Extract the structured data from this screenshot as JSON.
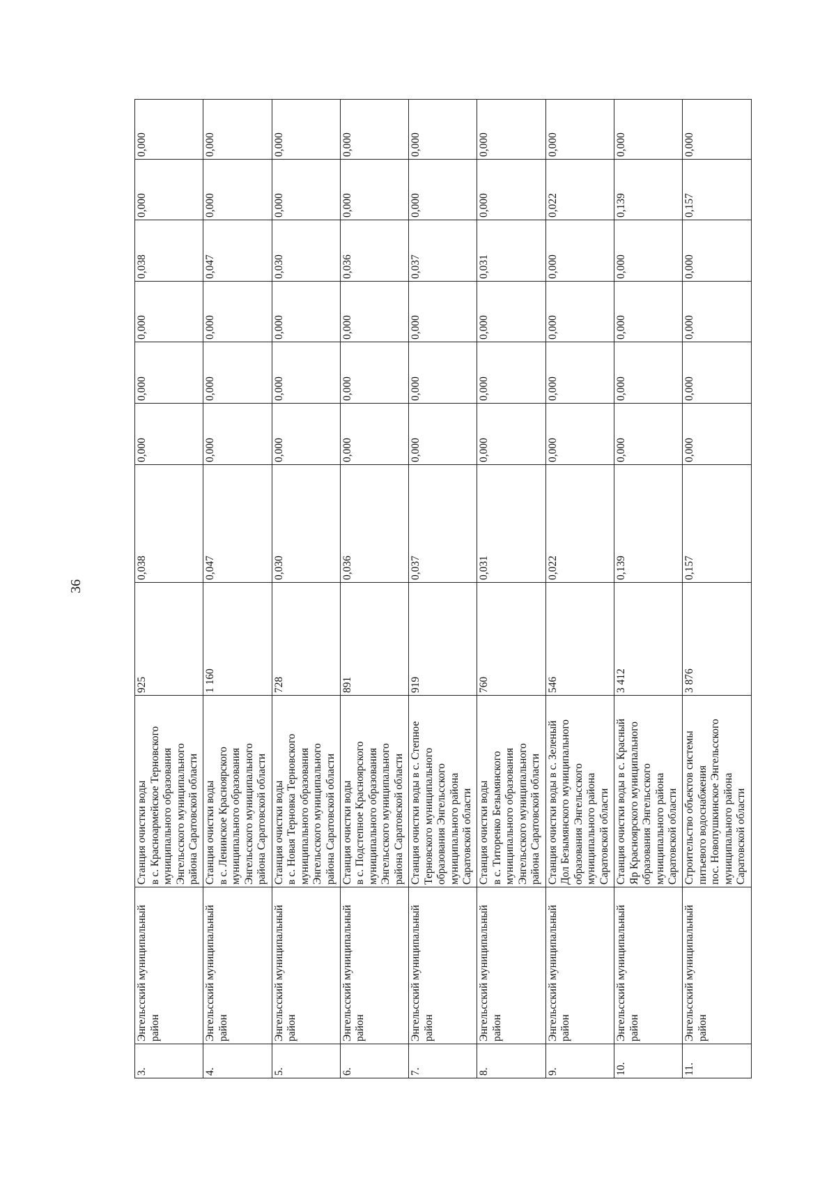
{
  "page_number": "36",
  "table": {
    "rows": [
      {
        "num": "3.",
        "district": "Энгельсский муниципальный\nрайон",
        "object": "Станция очистки воды\nв с. Красноармейское Терновского\nмуниципального образования\nЭнгельсского муниципального\nрайона Саратовской области",
        "values": [
          "925",
          "0,038",
          "0,000",
          "0,000",
          "0,000",
          "0,038",
          "0,000",
          "0,000"
        ]
      },
      {
        "num": "4.",
        "district": "Энгельсский муниципальный\nрайон",
        "object": "Станция очистки воды\nв с. Ленинское Красноярского\nмуниципального образования\nЭнгельсского муниципального\nрайона Саратовской области",
        "values": [
          "1 160",
          "0,047",
          "0,000",
          "0,000",
          "0,000",
          "0,047",
          "0,000",
          "0,000"
        ]
      },
      {
        "num": "5.",
        "district": "Энгельсский муниципальный\nрайон",
        "object": "Станция очистки воды\nв с. Новая Терновка Терновского\nмуниципального образования\nЭнгельсского муниципального\nрайона Саратовской области",
        "values": [
          "728",
          "0,030",
          "0,000",
          "0,000",
          "0,000",
          "0,030",
          "0,000",
          "0,000"
        ]
      },
      {
        "num": "6.",
        "district": "Энгельсский муниципальный\nрайон",
        "object": "Станция очистки воды\nв с. Подстепное Красноярского\nмуниципального образования\nЭнгельсского муниципального\nрайона Саратовской области",
        "values": [
          "891",
          "0,036",
          "0,000",
          "0,000",
          "0,000",
          "0,036",
          "0,000",
          "0,000"
        ]
      },
      {
        "num": "7.",
        "district": "Энгельсский муниципальный\nрайон",
        "object": "Станция очистки воды в с. Степное\nТерновского муниципального\nобразования Энгельсского\nмуниципального района\nСаратовской области",
        "values": [
          "919",
          "0,037",
          "0,000",
          "0,000",
          "0,000",
          "0,037",
          "0,000",
          "0,000"
        ]
      },
      {
        "num": "8.",
        "district": "Энгельсский муниципальный\nрайон",
        "object": "Станция очистки воды\nв с. Титоренко Безымянского\nмуниципального образования\nЭнгельсского муниципального\nрайона Саратовской области",
        "values": [
          "760",
          "0,031",
          "0,000",
          "0,000",
          "0,000",
          "0,031",
          "0,000",
          "0,000"
        ]
      },
      {
        "num": "9.",
        "district": "Энгельсский муниципальный\nрайон",
        "object": "Станция очистки воды в с. Зеленый\nДол Безымянского муниципального\nобразования Энгельсского\nмуниципального района\nСаратовской области",
        "values": [
          "546",
          "0,022",
          "0,000",
          "0,000",
          "0,000",
          "0,000",
          "0,022",
          "0,000"
        ]
      },
      {
        "num": "10.",
        "district": "Энгельсский муниципальный\nрайон",
        "object": "Станция очистки воды в с. Красный\nЯр Красноярского муниципального\nобразования Энгельсского\nмуниципального района\nСаратовской области",
        "values": [
          "3 412",
          "0,139",
          "0,000",
          "0,000",
          "0,000",
          "0,000",
          "0,139",
          "0,000"
        ]
      },
      {
        "num": "11.",
        "district": "Энгельсский муниципальный\nрайон",
        "object": "Строительство объектов системы\nпитьевого водоснабжения\nпос. Новопушкинское Энгельсского\nмуниципального района\nСаратовской области",
        "values": [
          "3 876",
          "0,157",
          "0,000",
          "0,000",
          "0,000",
          "0,000",
          "0,157",
          "0,000"
        ]
      }
    ]
  }
}
